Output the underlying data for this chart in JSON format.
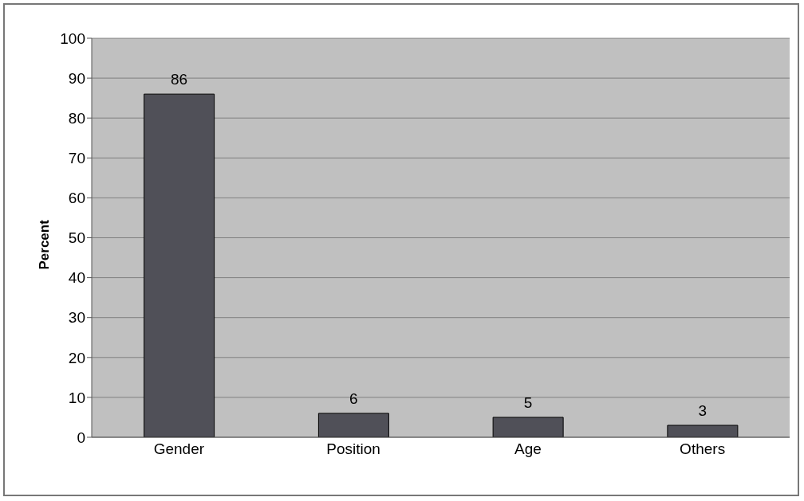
{
  "chart_data": {
    "type": "bar",
    "ylabel": "Percent",
    "categories": [
      "Gender",
      "Position",
      "Age",
      "Others"
    ],
    "values": [
      86,
      6,
      5,
      3
    ],
    "color": "#505058",
    "ylim": [
      0,
      100
    ],
    "yticks": [
      0,
      10,
      20,
      30,
      40,
      50,
      60,
      70,
      80,
      90,
      100
    ],
    "grid": "y",
    "data_labels": true
  }
}
